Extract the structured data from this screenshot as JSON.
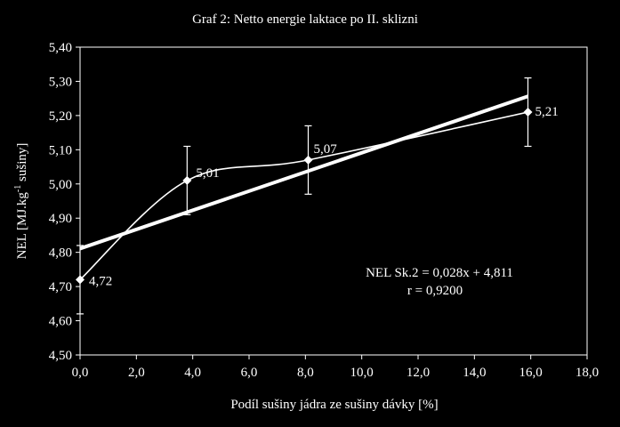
{
  "chart_data": {
    "type": "line",
    "title": "Graf 2: Netto energie laktace po II. sklizni",
    "xlabel": "Podíl sušiny jádra ze sušiny dávky [%]",
    "ylabel_main": "NEL [MJ.kg",
    "ylabel_sup": "-1",
    "ylabel_tail": " sušiny]",
    "xlim": [
      0,
      18
    ],
    "ylim": [
      4.5,
      5.4
    ],
    "x_ticks": [
      0,
      2,
      4,
      6,
      8,
      10,
      12,
      14,
      16,
      18
    ],
    "x_tick_labels": [
      "0,0",
      "2,0",
      "4,0",
      "6,0",
      "8,0",
      "10,0",
      "12,0",
      "14,0",
      "16,0",
      "18,0"
    ],
    "y_ticks": [
      4.5,
      4.6,
      4.7,
      4.8,
      4.9,
      5.0,
      5.1,
      5.2,
      5.3,
      5.4
    ],
    "y_tick_labels": [
      "4,50",
      "4,60",
      "4,70",
      "4,80",
      "4,90",
      "5,00",
      "5,10",
      "5,20",
      "5,30",
      "5,40"
    ],
    "series": [
      {
        "x": [
          0,
          3.8,
          8.1,
          15.9
        ],
        "values": [
          4.72,
          5.01,
          5.07,
          5.21
        ],
        "labels": [
          "4,72",
          "5,01",
          "5,07",
          "5,21"
        ],
        "error": [
          0.1,
          0.1,
          0.1,
          0.1
        ]
      }
    ],
    "trendline": {
      "slope": 0.028,
      "intercept": 4.811,
      "x_range": [
        0,
        15.9
      ]
    },
    "annotation_lines": [
      "NEL Sk.2 = 0,028x + 4,811",
      "r = 0,9200"
    ],
    "grid": false
  }
}
